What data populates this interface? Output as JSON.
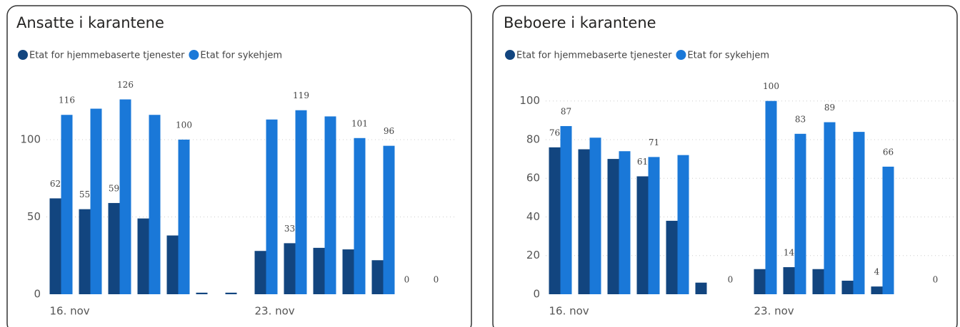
{
  "chart_data": [
    {
      "type": "bar",
      "title": "Ansatte i karantene",
      "categories": [
        "16. nov",
        null,
        null,
        null,
        null,
        null,
        null,
        "23. nov",
        null,
        null,
        null,
        null,
        null,
        null
      ],
      "series": [
        {
          "name": "Etat for hjemmebaserte tjenester",
          "color": "#12457f",
          "values": [
            62,
            55,
            59,
            49,
            38,
            1,
            1,
            28,
            33,
            30,
            29,
            22,
            0,
            0
          ],
          "value_labels": [
            "62",
            "55",
            "59",
            null,
            null,
            null,
            null,
            null,
            "33",
            null,
            null,
            null,
            "0",
            "0"
          ]
        },
        {
          "name": "Etat for sykehjem",
          "color": "#1a78d8",
          "values": [
            116,
            120,
            126,
            116,
            100,
            null,
            null,
            113,
            119,
            115,
            101,
            96,
            null,
            null
          ],
          "value_labels": [
            "116",
            null,
            "126",
            null,
            "100",
            null,
            null,
            null,
            "119",
            null,
            "101",
            "96",
            null,
            null
          ]
        }
      ],
      "ylim": [
        0,
        135
      ],
      "yticks": [
        0,
        50,
        100
      ],
      "grid": true,
      "legend": "top-left"
    },
    {
      "type": "bar",
      "title": "Beboere i karantene",
      "categories": [
        "16. nov",
        null,
        null,
        null,
        null,
        null,
        null,
        "23. nov",
        null,
        null,
        null,
        null,
        null,
        null
      ],
      "series": [
        {
          "name": "Etat for hjemmebaserte tjenester",
          "color": "#12457f",
          "values": [
            76,
            75,
            70,
            61,
            38,
            6,
            0,
            13,
            14,
            13,
            7,
            4,
            null,
            0
          ],
          "value_labels": [
            "76",
            null,
            null,
            "61",
            null,
            null,
            "0",
            null,
            "14",
            null,
            null,
            "4",
            null,
            "0"
          ]
        },
        {
          "name": "Etat for sykehjem",
          "color": "#1a78d8",
          "values": [
            87,
            81,
            74,
            71,
            72,
            null,
            null,
            100,
            83,
            89,
            84,
            66,
            null,
            null
          ],
          "value_labels": [
            "87",
            null,
            null,
            "71",
            null,
            null,
            null,
            "100",
            "83",
            "89",
            null,
            "66",
            null,
            null
          ]
        }
      ],
      "ylim": [
        0,
        108
      ],
      "yticks": [
        0,
        20,
        40,
        60,
        80,
        100
      ],
      "grid": true,
      "legend": "top-left"
    }
  ]
}
